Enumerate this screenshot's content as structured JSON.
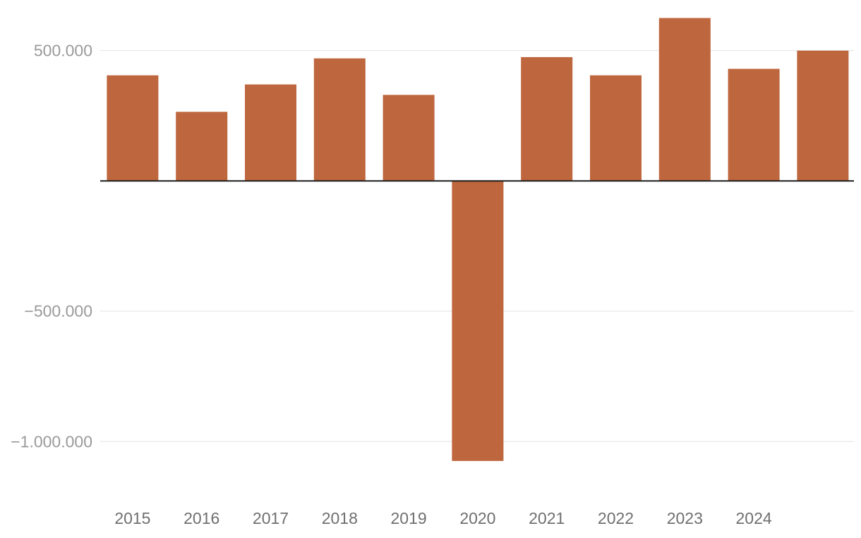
{
  "colors": {
    "bar": "#BE663D",
    "grid": "#E3E3E3",
    "zero_line": "#1F1F1F",
    "y_tick_text": "#9A9A9A",
    "x_tick_text": "#6F6F6F",
    "background": "#FFFFFF"
  },
  "chart_data": {
    "type": "bar",
    "categories": [
      "2015",
      "2016",
      "2017",
      "2018",
      "2019",
      "2020",
      "2021",
      "2022",
      "2023",
      "2024",
      ""
    ],
    "values": [
      405000,
      265000,
      370000,
      470000,
      330000,
      -1075000,
      475000,
      405000,
      625000,
      430000,
      500000
    ],
    "ylim": [
      -1170000,
      640000
    ],
    "yticks": [
      500000,
      -500000,
      -1000000
    ],
    "ytick_labels": [
      "500.000",
      "−500.000",
      "−1.000.000"
    ],
    "xtick_labels": [
      "2015",
      "2016",
      "2017",
      "2018",
      "2019",
      "2020",
      "2021",
      "2022",
      "2023",
      "2024"
    ],
    "grid": true,
    "legend": "none",
    "title": "",
    "xlabel": "",
    "ylabel": ""
  }
}
